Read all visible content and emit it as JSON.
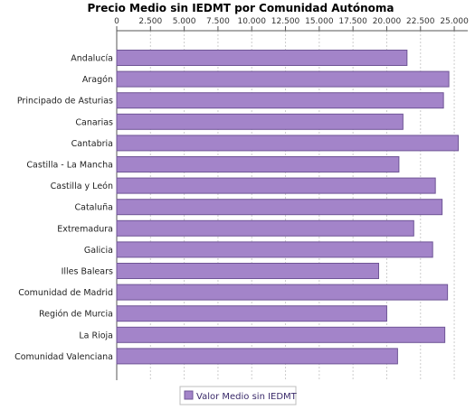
{
  "chart_data": {
    "type": "bar",
    "orientation": "horizontal",
    "title": "Precio Medio sin IEDMT por Comunidad Autónoma",
    "xlabel": "",
    "ylabel": "",
    "categories": [
      "Andalucía",
      "Aragón",
      "Principado de Asturias",
      "Canarias",
      "Cantabria",
      "Castilla - La Mancha",
      "Castilla y León",
      "Cataluña",
      "Extremadura",
      "Galicia",
      "Illes Balears",
      "Comunidad de Madrid",
      "Región de Murcia",
      "La Rioja",
      "Comunidad Valenciana"
    ],
    "series": [
      {
        "name": "Valor Medio sin IEDMT",
        "values": [
          21500,
          24600,
          24200,
          21200,
          25300,
          20900,
          23600,
          24100,
          22000,
          23400,
          19400,
          24500,
          20000,
          24300,
          20800
        ]
      }
    ],
    "xlim": [
      0,
      26000
    ],
    "x_ticks": [
      0,
      2500,
      5000,
      7500,
      10000,
      12500,
      15000,
      17500,
      20000,
      22500,
      25000
    ],
    "x_tick_labels": [
      "0",
      "2.500",
      "5.000",
      "7.500",
      "10.000",
      "12.500",
      "15.000",
      "17.500",
      "20.000",
      "22.500",
      "25.000"
    ],
    "axis_position": "top",
    "grid": true,
    "legend": "bottom",
    "colors": {
      "bar_fill": "#a384c9",
      "bar_stroke": "#6f5596",
      "grid": "#cccccc",
      "axis": "#555555"
    }
  }
}
